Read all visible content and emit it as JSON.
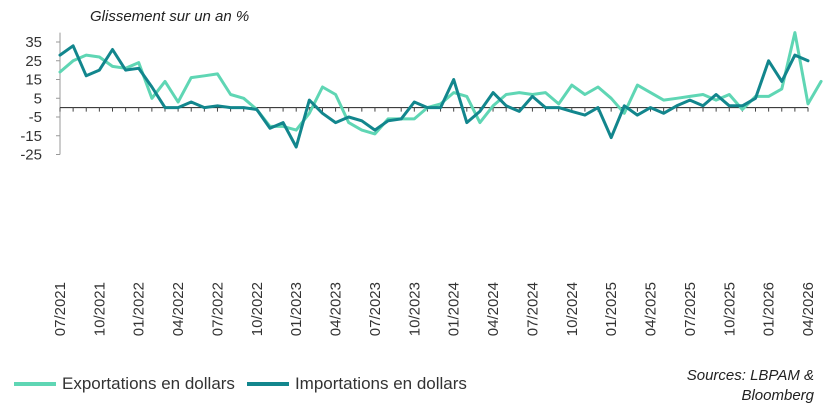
{
  "chart_data": {
    "type": "line",
    "ylabel": "Glissement sur un an %",
    "yticks": [
      35,
      25,
      15,
      5,
      -5,
      -15,
      -25
    ],
    "ylim": [
      -25,
      40
    ],
    "x_tick_labels": [
      "07/2021",
      "10/2021",
      "01/2022",
      "04/2022",
      "07/2022",
      "10/2022",
      "01/2023",
      "04/2023",
      "07/2023",
      "10/2023",
      "01/2024",
      "04/2024",
      "07/2024",
      "10/2024",
      "01/2025",
      "04/2025",
      "07/2025",
      "10/2025",
      "01/2026",
      "04/2026"
    ],
    "colors": {
      "exportations": "#5fd6b4",
      "importations": "#12868d"
    },
    "series": [
      {
        "name": "Exportations en dollars",
        "values": [
          19,
          25,
          28,
          27,
          22,
          21,
          24,
          5,
          14,
          3,
          16,
          17,
          18,
          7,
          5,
          -1,
          -10,
          -10,
          -12,
          -3,
          11,
          7,
          -8,
          -12,
          -14,
          -6,
          -6,
          -6,
          0,
          2,
          8,
          6,
          -8,
          1,
          7,
          8,
          7,
          8,
          2,
          12,
          7,
          11,
          5,
          -3,
          12,
          8,
          4,
          5,
          6,
          7,
          4,
          7,
          -1,
          6,
          6,
          10,
          40,
          2,
          14
        ],
        "name_bind": "legend.0.label"
      },
      {
        "name": "Importations en dollars",
        "values": [
          28,
          33,
          17,
          20,
          31,
          20,
          21,
          11,
          0,
          0,
          3,
          0,
          1,
          0,
          0,
          -1,
          -11,
          -8,
          -21,
          4,
          -3,
          -8,
          -5,
          -7,
          -12,
          -7,
          -6,
          3,
          0,
          0,
          15,
          -8,
          -2,
          8,
          1,
          -2,
          6,
          0,
          0,
          -2,
          -4,
          0,
          -16,
          1,
          -4,
          0,
          -3,
          1,
          4,
          1,
          7,
          1,
          1,
          5,
          25,
          14,
          28,
          25
        ],
        "name_bind": "legend.1.label"
      }
    ]
  },
  "legend": [
    {
      "label": "Exportations en dollars",
      "color": "#5fd6b4"
    },
    {
      "label": "Importations en dollars",
      "color": "#12868d"
    }
  ],
  "source": {
    "line1": "Sources: LBPAM &",
    "line2": "Bloomberg"
  }
}
